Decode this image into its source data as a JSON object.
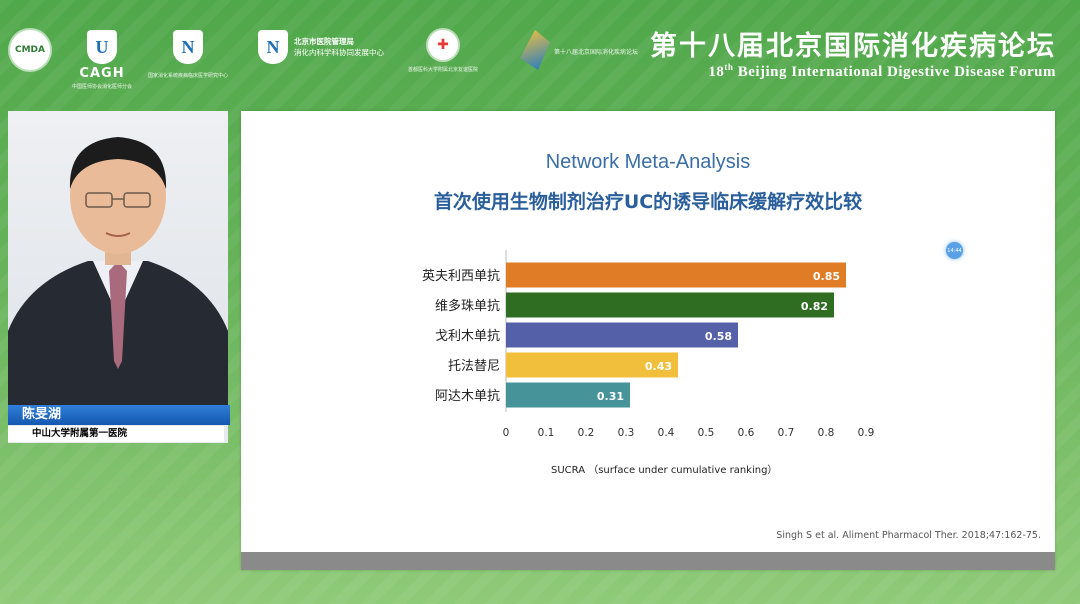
{
  "header": {
    "logos": [
      {
        "name": "cmda-logo",
        "mark": "CMDA",
        "caption": "",
        "sub": ""
      },
      {
        "name": "cagh-logo",
        "mark": "U",
        "caption": "CAGH",
        "sub": "中国医师协会消化医师分会"
      },
      {
        "name": "national-center-logo",
        "mark": "N",
        "caption": "",
        "sub": "国家消化系统疾病临床医学研究中心"
      },
      {
        "name": "beijing-hospital-admin-logo",
        "mark": "N",
        "caption": "北京市医院管理局",
        "sub": "消化内科学科协同发展中心"
      },
      {
        "name": "friendship-hospital-logo",
        "mark": "",
        "caption": "",
        "sub": "首都医科大学附属北京友谊医院"
      },
      {
        "name": "forum-logo",
        "mark": "",
        "caption": "",
        "sub": "第十八届北京国际消化疾病论坛"
      }
    ],
    "forum_title_cn": "第十八届北京国际消化疾病论坛",
    "forum_title_en_prefix": "18",
    "forum_title_en_sup": "th",
    "forum_title_en_rest": " Beijing International Digestive Disease Forum"
  },
  "speaker": {
    "name": "陈旻湖",
    "affiliation": "中山大学附属第一医院"
  },
  "slide": {
    "title_en": "Network Meta-Analysis",
    "title_cn": "首次使用生物制剂治疗UC的诱导临床缓解疗效比较",
    "citation": "Singh S et al. Aliment Pharmacol Ther. 2018;47:162-75."
  },
  "pointer_label": "14:44",
  "chart_data": {
    "type": "bar",
    "orientation": "horizontal",
    "categories": [
      "英夫利西单抗",
      "维多珠单抗",
      "戈利木单抗",
      "托法替尼",
      "阿达木单抗"
    ],
    "values": [
      0.85,
      0.82,
      0.58,
      0.43,
      0.31
    ],
    "value_labels": [
      "0.85",
      "0.82",
      "0.58",
      "0.43",
      "0.31"
    ],
    "colors": [
      "#e07b26",
      "#2f6e22",
      "#5460a8",
      "#f2bf3c",
      "#46939a"
    ],
    "xlim": [
      0,
      0.9
    ],
    "xticks": [
      "0",
      "0.1",
      "0.2",
      "0.3",
      "0.4",
      "0.5",
      "0.6",
      "0.7",
      "0.8",
      "0.9"
    ],
    "xlabel": "SUCRA （surface under cumulative ranking）",
    "grid": false
  }
}
